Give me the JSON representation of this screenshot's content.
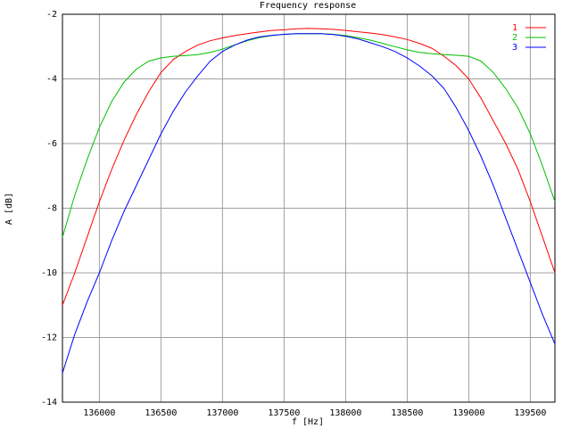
{
  "chart_data": {
    "type": "line",
    "title": "Frequency response",
    "x_label": "f [Hz]",
    "y_label": "A [dB]",
    "x": [
      135700,
      135800,
      135900,
      136000,
      136100,
      136200,
      136300,
      136400,
      136500,
      136600,
      136700,
      136800,
      136900,
      137000,
      137100,
      137200,
      137300,
      137400,
      137500,
      137600,
      137700,
      137800,
      137900,
      138000,
      138100,
      138200,
      138300,
      138400,
      138500,
      138600,
      138700,
      138800,
      138900,
      139000,
      139100,
      139200,
      139300,
      139400,
      139500,
      139600,
      139700
    ],
    "series": [
      {
        "name": "1",
        "color": "#ff0000",
        "values": [
          -11.0,
          -10.0,
          -8.9,
          -7.8,
          -6.8,
          -5.9,
          -5.1,
          -4.4,
          -3.8,
          -3.4,
          -3.15,
          -2.95,
          -2.82,
          -2.73,
          -2.66,
          -2.6,
          -2.55,
          -2.5,
          -2.48,
          -2.45,
          -2.44,
          -2.45,
          -2.47,
          -2.5,
          -2.54,
          -2.58,
          -2.63,
          -2.7,
          -2.78,
          -2.9,
          -3.05,
          -3.3,
          -3.6,
          -4.0,
          -4.6,
          -5.3,
          -6.0,
          -6.8,
          -7.8,
          -8.9,
          -10.0
        ]
      },
      {
        "name": "2",
        "color": "#00c000",
        "values": [
          -8.9,
          -7.6,
          -6.5,
          -5.5,
          -4.7,
          -4.1,
          -3.7,
          -3.45,
          -3.35,
          -3.3,
          -3.28,
          -3.25,
          -3.18,
          -3.08,
          -2.95,
          -2.82,
          -2.72,
          -2.66,
          -2.62,
          -2.6,
          -2.6,
          -2.6,
          -2.62,
          -2.66,
          -2.72,
          -2.8,
          -2.9,
          -3.0,
          -3.1,
          -3.18,
          -3.22,
          -3.25,
          -3.27,
          -3.3,
          -3.45,
          -3.8,
          -4.3,
          -4.9,
          -5.7,
          -6.7,
          -7.8
        ]
      },
      {
        "name": "3",
        "color": "#0000ff",
        "values": [
          -13.1,
          -11.9,
          -10.9,
          -10.0,
          -9.0,
          -8.1,
          -7.3,
          -6.5,
          -5.7,
          -5.0,
          -4.4,
          -3.9,
          -3.45,
          -3.15,
          -2.95,
          -2.8,
          -2.7,
          -2.65,
          -2.62,
          -2.6,
          -2.6,
          -2.6,
          -2.63,
          -2.68,
          -2.76,
          -2.88,
          -3.0,
          -3.15,
          -3.35,
          -3.6,
          -3.9,
          -4.3,
          -4.9,
          -5.6,
          -6.4,
          -7.3,
          -8.3,
          -9.3,
          -10.3,
          -11.3,
          -12.2
        ]
      }
    ],
    "xlim": [
      135700,
      139700
    ],
    "ylim": [
      -14,
      -2
    ],
    "xticks": [
      136000,
      136500,
      137000,
      137500,
      138000,
      138500,
      139000,
      139500
    ],
    "yticks": [
      -14,
      -12,
      -10,
      -8,
      -6,
      -4,
      -2
    ],
    "grid": true,
    "legend": "upper right"
  }
}
